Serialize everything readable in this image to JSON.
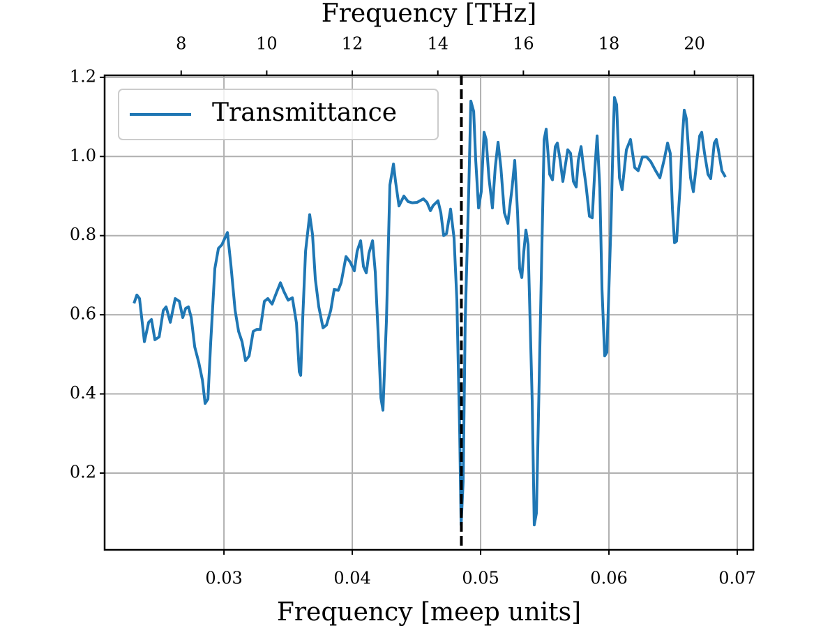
{
  "chart_data": {
    "type": "line",
    "xlabel": "Frequency [meep units]",
    "x2label": "Frequency [THz]",
    "xlim": [
      0.0207,
      0.07125
    ],
    "xticks": [
      0.03,
      0.04,
      0.05,
      0.06,
      0.07
    ],
    "x2lim": [
      6.21,
      21.375
    ],
    "x2ticks": [
      8,
      10,
      12,
      14,
      16,
      18,
      20
    ],
    "ylim": [
      0.006,
      1.205
    ],
    "yticks": [
      0.2,
      0.4,
      0.6,
      0.8,
      {
        "value": 1,
        "label": "1.0"
      },
      1.2
    ],
    "grid": true,
    "legend": "upper left",
    "vline": {
      "x": 0.0485,
      "color": "#000000",
      "linestyle": "dashed"
    },
    "x": [
      0.02299,
      0.02321,
      0.02342,
      0.0238,
      0.02413,
      0.02435,
      0.02462,
      0.02495,
      0.02527,
      0.02549,
      0.02582,
      0.0262,
      0.02652,
      0.02679,
      0.02701,
      0.02723,
      0.02745,
      0.02772,
      0.02804,
      0.02832,
      0.02853,
      0.02875,
      0.02897,
      0.02929,
      0.02957,
      0.02984,
      0.03027,
      0.03054,
      0.03087,
      0.03114,
      0.03141,
      0.03168,
      0.03196,
      0.03228,
      0.03255,
      0.03283,
      0.03315,
      0.03342,
      0.03375,
      0.03408,
      0.0344,
      0.03467,
      0.035,
      0.03533,
      0.03565,
      0.03587,
      0.03598,
      0.03614,
      0.03636,
      0.03668,
      0.0369,
      0.03712,
      0.03739,
      0.03772,
      0.03799,
      0.03832,
      0.03859,
      0.03891,
      0.03913,
      0.03951,
      0.03984,
      0.04016,
      0.04038,
      0.04065,
      0.04087,
      0.04109,
      0.0413,
      0.04158,
      0.04179,
      0.04207,
      0.04223,
      0.04239,
      0.04266,
      0.04293,
      0.04321,
      0.04337,
      0.04364,
      0.04402,
      0.04435,
      0.04467,
      0.04505,
      0.04554,
      0.04582,
      0.04609,
      0.0463,
      0.04668,
      0.0469,
      0.04712,
      0.04734,
      0.04766,
      0.04793,
      0.04815,
      0.04837,
      0.04848,
      0.04864,
      0.0488,
      0.04908,
      0.04924,
      0.04946,
      0.04962,
      0.04984,
      0.05005,
      0.05027,
      0.05043,
      0.05065,
      0.05092,
      0.05114,
      0.05136,
      0.05158,
      0.05185,
      0.05212,
      0.05245,
      0.05266,
      0.05288,
      0.05304,
      0.05321,
      0.05337,
      0.05353,
      0.0537,
      0.05402,
      0.05418,
      0.05435,
      0.05457,
      0.05478,
      0.05495,
      0.05511,
      0.05538,
      0.0556,
      0.05582,
      0.05598,
      0.0562,
      0.05641,
      0.05679,
      0.05701,
      0.05723,
      0.05745,
      0.05761,
      0.05783,
      0.05799,
      0.05821,
      0.05848,
      0.0587,
      0.05891,
      0.05908,
      0.05929,
      0.05946,
      0.05967,
      0.05984,
      0.06016,
      0.06033,
      0.06043,
      0.0606,
      0.06082,
      0.06103,
      0.06136,
      0.06168,
      0.06201,
      0.06228,
      0.06261,
      0.06293,
      0.06326,
      0.06364,
      0.06397,
      0.06429,
      0.06457,
      0.06478,
      0.06495,
      0.06511,
      0.06527,
      0.06554,
      0.06571,
      0.06587,
      0.06603,
      0.06636,
      0.06658,
      0.06679,
      0.06707,
      0.06723,
      0.06745,
      0.06772,
      0.06793,
      0.06821,
      0.06837,
      0.06853,
      0.0688,
      0.06908
    ],
    "series": [
      {
        "name": "Transmittance",
        "color": "#1f77b4",
        "values": [
          0.629,
          0.65,
          0.641,
          0.532,
          0.581,
          0.588,
          0.537,
          0.544,
          0.611,
          0.62,
          0.581,
          0.641,
          0.634,
          0.593,
          0.616,
          0.62,
          0.593,
          0.519,
          0.479,
          0.435,
          0.376,
          0.387,
          0.532,
          0.717,
          0.768,
          0.777,
          0.808,
          0.726,
          0.611,
          0.558,
          0.532,
          0.484,
          0.496,
          0.558,
          0.563,
          0.563,
          0.634,
          0.641,
          0.627,
          0.655,
          0.681,
          0.659,
          0.637,
          0.643,
          0.579,
          0.456,
          0.447,
          0.593,
          0.761,
          0.853,
          0.803,
          0.69,
          0.62,
          0.567,
          0.574,
          0.611,
          0.664,
          0.662,
          0.681,
          0.747,
          0.733,
          0.711,
          0.761,
          0.787,
          0.722,
          0.706,
          0.756,
          0.787,
          0.708,
          0.514,
          0.39,
          0.359,
          0.584,
          0.928,
          0.981,
          0.937,
          0.875,
          0.9,
          0.886,
          0.883,
          0.884,
          0.893,
          0.884,
          0.863,
          0.876,
          0.888,
          0.858,
          0.8,
          0.805,
          0.867,
          0.794,
          0.637,
          0.302,
          0.069,
          0.179,
          0.584,
          0.92,
          1.14,
          1.114,
          0.99,
          0.87,
          0.911,
          1.061,
          1.043,
          0.946,
          0.87,
          0.972,
          1.036,
          0.972,
          0.858,
          0.831,
          0.92,
          0.99,
          0.858,
          0.717,
          0.694,
          0.761,
          0.814,
          0.778,
          0.382,
          0.069,
          0.099,
          0.443,
          0.778,
          1.043,
          1.069,
          0.955,
          0.941,
          1.025,
          1.034,
          0.99,
          0.937,
          1.017,
          1.008,
          0.937,
          0.923,
          0.99,
          1.025,
          0.98,
          0.928,
          0.849,
          0.845,
          0.972,
          1.052,
          0.92,
          0.664,
          0.496,
          0.505,
          0.831,
          1.052,
          1.149,
          1.131,
          0.946,
          0.916,
          1.017,
          1.043,
          0.972,
          0.964,
          0.999,
          0.999,
          0.987,
          0.964,
          0.946,
          0.99,
          1.034,
          1.008,
          0.867,
          0.782,
          0.786,
          0.92,
          1.043,
          1.117,
          1.096,
          0.946,
          0.911,
          0.972,
          1.052,
          1.061,
          1.008,
          0.955,
          0.944,
          1.034,
          1.043,
          1.017,
          0.964,
          0.948
        ]
      }
    ]
  }
}
